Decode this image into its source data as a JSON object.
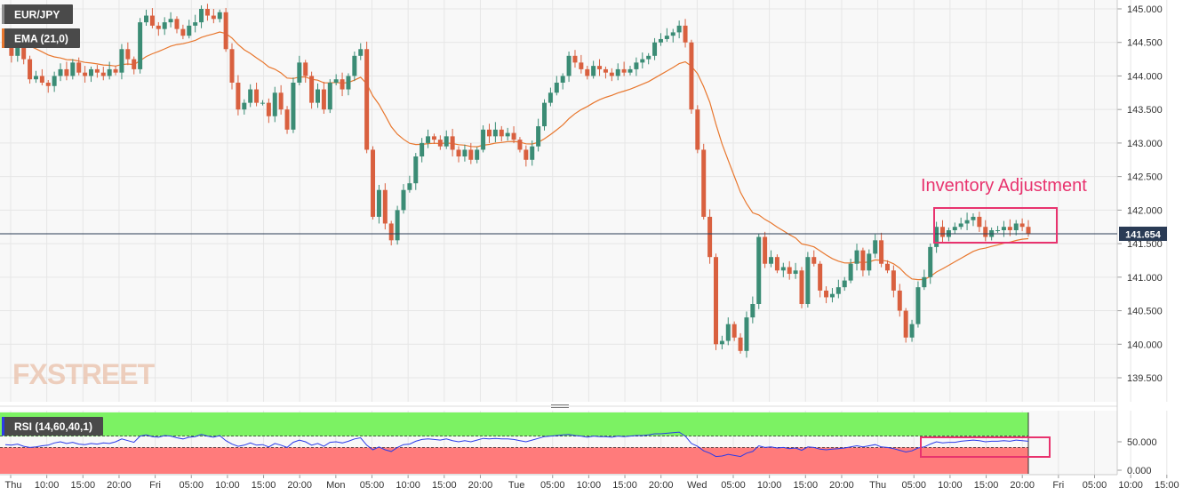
{
  "header": {
    "symbol": "EUR/JPY",
    "indicator": "EMA (21,0)"
  },
  "rsi_label": "RSI (14,60,40,1)",
  "annotation": "Inventory Adjustment",
  "watermark": "FXSTREET",
  "last_price_label": "141.654",
  "colors": {
    "up": "#3b8c75",
    "down": "#d9603f",
    "ema": "#e8772e",
    "rsi_line": "#2b3be8",
    "rsi_upper_zone": "#7cf263",
    "rsi_lower_zone": "#ff7b7b",
    "annotation": "#e8336e",
    "price_line": "#2a3b55"
  },
  "chart_data": [
    {
      "type": "candlestick",
      "title": "EUR/JPY",
      "y_ticks": [
        "145.000",
        "144.500",
        "144.000",
        "143.500",
        "143.000",
        "142.500",
        "142.000",
        "141.500",
        "141.000",
        "140.500",
        "140.000",
        "139.500"
      ],
      "ylim": [
        139.15,
        145.1
      ],
      "x_ticks": [
        "Thu",
        "10:00",
        "15:00",
        "20:00",
        "Fri",
        "05:00",
        "10:00",
        "15:00",
        "20:00",
        "Mon",
        "05:00",
        "10:00",
        "15:00",
        "20:00",
        "Tue",
        "05:00",
        "10:00",
        "15:00",
        "20:00",
        "Wed",
        "05:00",
        "10:00",
        "15:00",
        "20:00",
        "Thu",
        "05:00",
        "10:00",
        "15:00",
        "20:00",
        "Fri",
        "05:00",
        "10:00",
        "15:00"
      ],
      "last_price": 141.654,
      "ema_period": 21,
      "series_close": [
        144.55,
        144.3,
        144.45,
        144.25,
        143.95,
        144.0,
        143.9,
        143.85,
        144.0,
        144.1,
        144.0,
        144.2,
        144.05,
        144.0,
        144.1,
        144.05,
        144.0,
        144.1,
        144.05,
        144.4,
        144.25,
        144.1,
        144.8,
        144.9,
        144.75,
        144.7,
        144.8,
        144.85,
        144.7,
        144.6,
        144.75,
        144.8,
        145.0,
        144.9,
        144.85,
        144.95,
        144.4,
        143.9,
        143.5,
        143.6,
        143.8,
        143.6,
        143.6,
        143.4,
        143.75,
        143.5,
        143.2,
        143.9,
        144.2,
        144.0,
        143.6,
        143.8,
        143.5,
        143.9,
        143.95,
        143.8,
        144.0,
        144.3,
        144.4,
        142.9,
        141.9,
        142.3,
        141.8,
        141.55,
        142.0,
        142.3,
        142.4,
        142.8,
        143.0,
        143.1,
        143.05,
        142.95,
        143.1,
        142.9,
        142.8,
        142.9,
        142.75,
        142.9,
        143.2,
        143.1,
        143.2,
        143.1,
        143.15,
        143.05,
        142.9,
        142.75,
        142.95,
        143.25,
        143.6,
        143.75,
        143.9,
        144.0,
        144.3,
        144.2,
        144.1,
        144.0,
        144.15,
        144.1,
        144.05,
        144.0,
        144.1,
        144.05,
        144.1,
        144.2,
        144.25,
        144.3,
        144.5,
        144.55,
        144.6,
        144.65,
        144.75,
        144.5,
        143.5,
        142.9,
        141.9,
        141.3,
        140.0,
        140.05,
        140.3,
        140.1,
        139.9,
        140.4,
        140.6,
        141.6,
        141.2,
        141.3,
        141.1,
        141.15,
        141.05,
        141.1,
        140.6,
        141.3,
        141.2,
        140.8,
        140.7,
        140.75,
        140.85,
        140.95,
        141.2,
        141.4,
        141.1,
        141.35,
        141.55,
        141.2,
        141.1,
        140.8,
        140.5,
        140.1,
        140.3,
        140.85,
        141.0,
        141.45,
        141.75,
        141.6,
        141.7,
        141.75,
        141.8,
        141.85,
        141.9,
        141.75,
        141.6,
        141.7,
        141.7,
        141.75,
        141.7,
        141.8,
        141.75,
        141.654
      ]
    },
    {
      "type": "line",
      "title": "RSI (14,60,40,1)",
      "y_ticks": [
        "50.000",
        "0.000"
      ],
      "ylim": [
        -15,
        90
      ],
      "upper_level": 60,
      "lower_level": 40,
      "values": [
        45,
        44,
        46,
        42,
        40,
        41,
        43,
        44,
        48,
        50,
        47,
        49,
        46,
        45,
        47,
        46,
        48,
        47,
        50,
        55,
        52,
        49,
        60,
        62,
        59,
        58,
        61,
        60,
        57,
        55,
        58,
        59,
        63,
        60,
        58,
        61,
        52,
        46,
        42,
        44,
        48,
        44,
        45,
        41,
        47,
        44,
        40,
        49,
        53,
        50,
        44,
        47,
        42,
        49,
        50,
        48,
        51,
        55,
        57,
        44,
        36,
        41,
        36,
        33,
        40,
        45,
        46,
        51,
        54,
        55,
        54,
        53,
        55,
        52,
        50,
        52,
        50,
        53,
        56,
        55,
        56,
        55,
        55,
        54,
        52,
        50,
        53,
        56,
        59,
        60,
        61,
        62,
        63,
        61,
        60,
        58,
        60,
        59,
        59,
        58,
        60,
        59,
        60,
        61,
        61,
        62,
        64,
        64,
        65,
        66,
        67,
        60,
        47,
        42,
        34,
        30,
        24,
        25,
        28,
        26,
        24,
        30,
        33,
        43,
        40,
        41,
        39,
        40,
        38,
        39,
        35,
        41,
        40,
        37,
        36,
        37,
        38,
        39,
        41,
        43,
        41,
        43,
        45,
        41,
        40,
        38,
        35,
        32,
        34,
        39,
        41,
        46,
        50,
        48,
        49,
        49,
        51,
        52,
        53,
        52,
        50,
        51,
        51,
        52,
        51,
        53,
        52,
        51
      ]
    }
  ]
}
